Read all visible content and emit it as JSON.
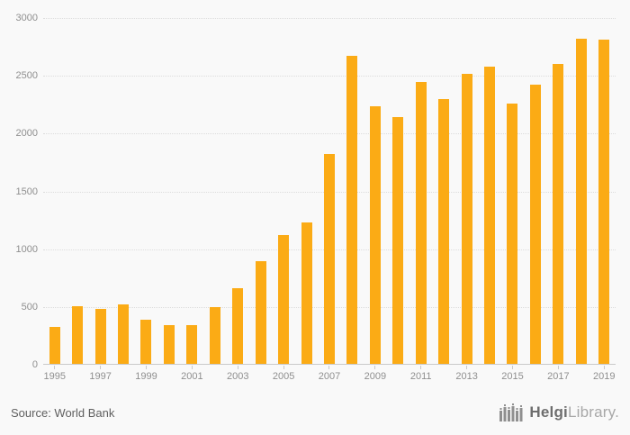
{
  "chart_data": {
    "type": "bar",
    "title": "",
    "xlabel": "",
    "ylabel": "",
    "categories": [
      1995,
      1996,
      1997,
      1998,
      1999,
      2000,
      2001,
      2002,
      2003,
      2004,
      2005,
      2006,
      2007,
      2008,
      2009,
      2010,
      2011,
      2012,
      2013,
      2014,
      2015,
      2016,
      2017,
      2018,
      2019
    ],
    "values": [
      330,
      510,
      480,
      520,
      390,
      340,
      340,
      500,
      660,
      900,
      1120,
      1230,
      1820,
      2670,
      2240,
      2140,
      2450,
      2300,
      2520,
      2580,
      2260,
      2420,
      2600,
      2820,
      2810
    ],
    "ylim": [
      0,
      3000
    ],
    "yticks": [
      0,
      500,
      1000,
      1500,
      2000,
      2500,
      3000
    ],
    "labeled_years": [
      1995,
      1997,
      1999,
      2001,
      2003,
      2005,
      2007,
      2009,
      2011,
      2013,
      2015,
      2017,
      2019
    ],
    "bar_color": "#fbab15",
    "grid": "horizontal-dotted",
    "legend": "none"
  },
  "footer": {
    "source": "Source: World Bank",
    "brand_bold": "Helgi",
    "brand_light": "Library."
  }
}
